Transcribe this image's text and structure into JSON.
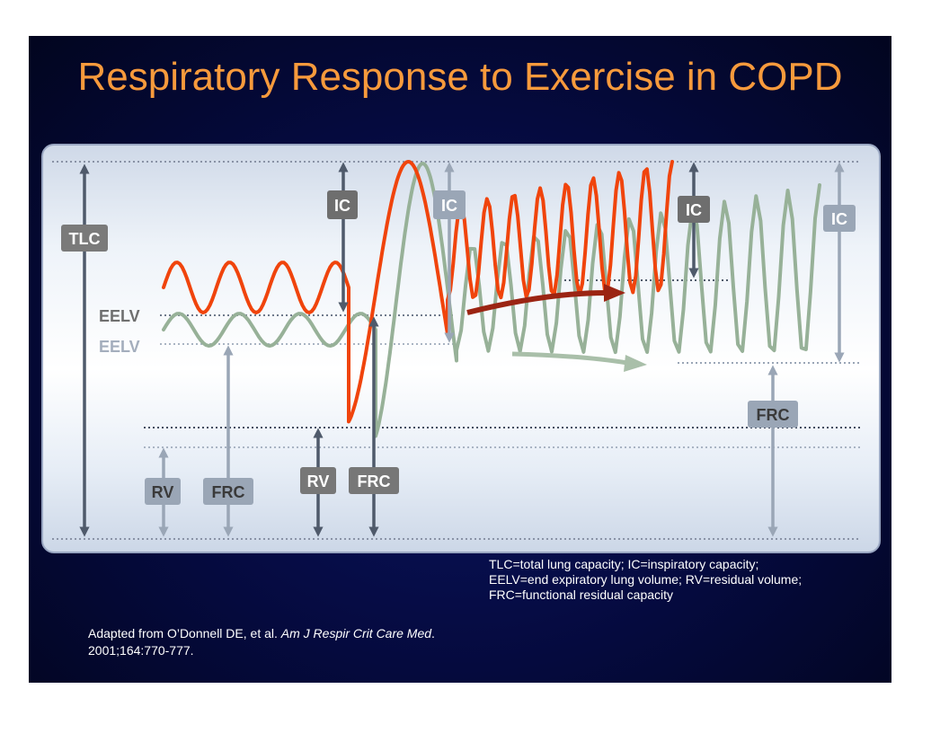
{
  "title": "Respiratory Response to Exercise in COPD",
  "labels": {
    "tlc": "TLC",
    "ic": "IC",
    "eelv": "EELV",
    "rv": "RV",
    "frc": "FRC"
  },
  "legend": [
    "TLC=total lung capacity; IC=inspiratory capacity;",
    "EELV=end expiratory lung volume; RV=residual volume;",
    "FRC=functional residual capacity"
  ],
  "citation": {
    "prefix": "Adapted from O’Donnell DE, et al.",
    "journal": "Am J Respir Crit Care Med",
    "suffix": ".",
    "details": "2001;164:770-777."
  },
  "colors": {
    "copd_curve": "#f0440c",
    "normal_curve": "#97b198",
    "copd_arrow": "#9b2413",
    "dark_marker": "#4f5a6b",
    "light_marker": "#9aa6b6",
    "title": "#f79a3c"
  }
}
